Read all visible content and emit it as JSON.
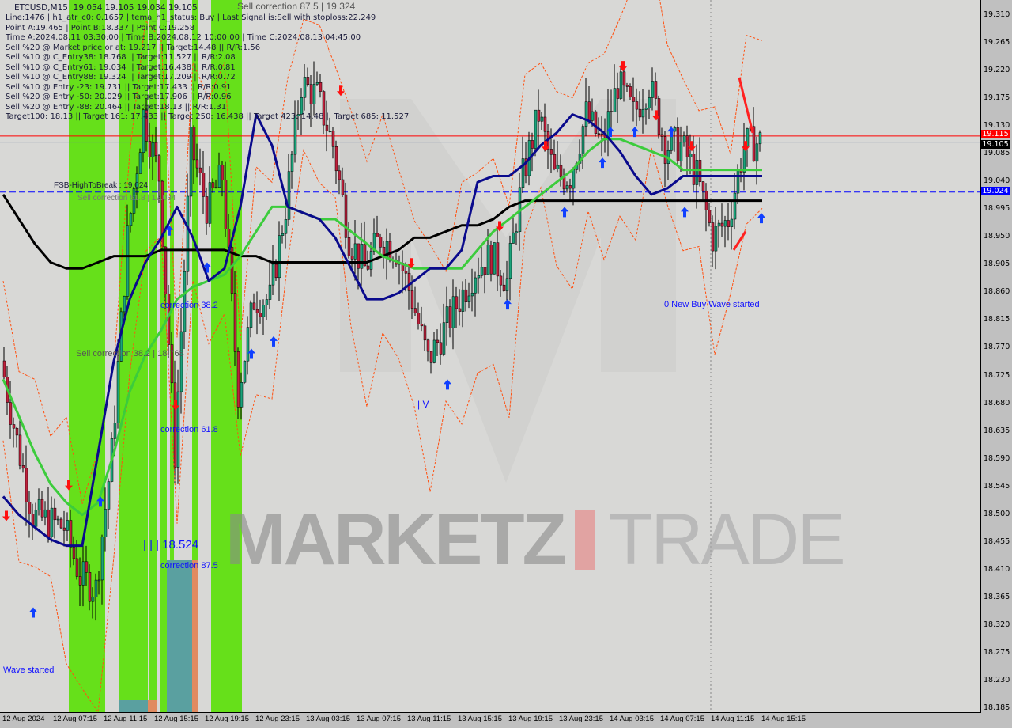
{
  "header": {
    "symbol": "ETCUSD,M15",
    "ohlc": "19.054 19.105 19.034 19.105",
    "lines": [
      "Line:1476 | h1_atr_c0: 0.1657 | tema_h1_status: Buy | Last Signal is:Sell with stoploss:22.249",
      "Point A:19.465 | Point B:18.337 | Point C:19.258",
      "Time A:2024.08.11 03:30:00 | Time B:2024.08.12 10:00:00 | Time C:2024.08.13 04:45:00",
      "Sell %20 @ Market price or at: 19.217 || Target:14.48 || R/R:1.56",
      "Sell %10 @ C_Entry38: 18.768 || Target:11.527 || R/R:2.08",
      "Sell %10 @ C_Entry61: 19.034 || Target:16.438 || R/R:0.81",
      "Sell %10 @ C_Entry88: 19.324 || Target:17.209 || R/R:0.72",
      "Sell %10 @ Entry -23: 19.731 || Target:17.433 || R/R:0.91",
      "Sell %20 @ Entry -50: 20.029 || Target:17.906 || R/R:0.96",
      "Sell %20 @ Entry -88: 20.464 || Target:18.13 || R/R:1.31",
      "Target100: 18.13 || Target 161: 17.433 || Target 250: 16.438 || Target 423: 14.48 || Target 685: 11.527"
    ]
  },
  "annotations": {
    "sell_corr_875": "Sell correction 87.5 | 19.324",
    "fsb": "FSB-HighToBreak : 19.024",
    "sell_corr_618": "Sell correction 61.8 | 19.034",
    "corr_382": "correction 38.2",
    "sell_corr_382": "Sell correction 38.2 | 18.768",
    "corr_618": "correction 61.8",
    "corr_875": "correction 87.5",
    "low_label": "| | | 18.524",
    "new_buy": "0 New Buy Wave started",
    "wave_started": "Wave started",
    "wave_v": "| V"
  },
  "watermark": {
    "left": "MARKETZ",
    "right": "TRADE",
    "accent": "#e8a0a0"
  },
  "price_tags": {
    "ask": "19.115",
    "bid": "19.105",
    "fsb": "19.024"
  },
  "colors": {
    "bull": "#1aa37a",
    "bear": "#c0203c",
    "zone": "#66e01a",
    "blue_ma": "#0a0a8c",
    "green_ma": "#3ccc3c",
    "black_ma": "#000000",
    "buy_arrow": "#1040ff",
    "sell_arrow": "#ff1010",
    "fsb_line": "#0000ff",
    "ask_line": "#ff0000"
  },
  "chart_data": {
    "type": "candlestick",
    "title": "ETCUSD,M15",
    "ylim": [
      18.185,
      19.31
    ],
    "y_ticks": [
      "19.310",
      "19.265",
      "19.220",
      "19.175",
      "19.130",
      "19.085",
      "19.040",
      "18.995",
      "18.950",
      "18.905",
      "18.860",
      "18.815",
      "18.770",
      "18.725",
      "18.680",
      "18.635",
      "18.590",
      "18.545",
      "18.500",
      "18.455",
      "18.410",
      "18.365",
      "18.320",
      "18.275",
      "18.230",
      "18.185"
    ],
    "x_ticks": [
      "12 Aug 2024",
      "12 Aug 07:15",
      "12 Aug 11:15",
      "12 Aug 15:15",
      "12 Aug 19:15",
      "12 Aug 23:15",
      "13 Aug 03:15",
      "13 Aug 07:15",
      "13 Aug 11:15",
      "13 Aug 15:15",
      "13 Aug 19:15",
      "13 Aug 23:15",
      "14 Aug 03:15",
      "14 Aug 07:15",
      "14 Aug 11:15",
      "14 Aug 15:15"
    ],
    "close_every_hour_approx": [
      18.75,
      18.62,
      18.5,
      18.49,
      18.48,
      18.4,
      18.38,
      18.6,
      18.95,
      19.15,
      19.05,
      18.6,
      19.1,
      19.0,
      19.05,
      18.7,
      18.85,
      18.85,
      19.0,
      19.2,
      19.18,
      19.1,
      18.95,
      18.9,
      18.95,
      18.93,
      18.85,
      18.75,
      18.8,
      18.85,
      18.9,
      18.92,
      18.88,
      19.05,
      19.15,
      19.05,
      19.05,
      19.15,
      19.1,
      19.2,
      19.15,
      19.2,
      19.1,
      19.1,
      19.05,
      18.95,
      18.98,
      19.1,
      19.105
    ],
    "series": [
      {
        "ma": "black",
        "values": [
          19.02,
          18.98,
          18.94,
          18.91,
          18.9,
          18.9,
          18.91,
          18.92,
          18.92,
          18.92,
          18.93,
          18.93,
          18.93,
          18.93,
          18.93,
          18.92,
          18.92,
          18.91,
          18.91,
          18.91,
          18.91,
          18.91,
          18.91,
          18.91,
          18.92,
          18.93,
          18.95,
          18.95,
          18.96,
          18.97,
          18.97,
          18.98,
          19.0,
          19.01,
          19.01,
          19.01,
          19.01,
          19.01,
          19.01,
          19.01,
          19.01,
          19.01,
          19.01,
          19.01,
          19.01,
          19.01,
          19.01,
          19.01,
          19.01
        ]
      },
      {
        "ma": "green",
        "values": [
          18.72,
          18.66,
          18.6,
          18.55,
          18.52,
          18.5,
          18.52,
          18.6,
          18.7,
          18.76,
          18.8,
          18.85,
          18.87,
          18.88,
          18.89,
          18.92,
          18.96,
          19.0,
          19.0,
          18.99,
          18.98,
          18.98,
          18.96,
          18.94,
          18.92,
          18.91,
          18.9,
          18.9,
          18.9,
          18.9,
          18.93,
          18.96,
          18.98,
          19.0,
          19.02,
          19.04,
          19.06,
          19.09,
          19.11,
          19.11,
          19.1,
          19.09,
          19.08,
          19.06,
          19.06,
          19.06,
          19.06,
          19.06,
          19.06
        ]
      },
      {
        "ma": "blue",
        "values": [
          18.53,
          18.5,
          18.48,
          18.46,
          18.45,
          18.45,
          18.6,
          18.75,
          18.85,
          18.91,
          18.95,
          19.0,
          18.95,
          18.88,
          18.9,
          19.0,
          19.15,
          19.1,
          19.0,
          18.99,
          18.98,
          18.95,
          18.9,
          18.85,
          18.85,
          18.86,
          18.88,
          18.9,
          18.9,
          18.93,
          19.04,
          19.05,
          19.05,
          19.07,
          19.1,
          19.12,
          19.15,
          19.14,
          19.12,
          19.09,
          19.05,
          19.02,
          19.03,
          19.05,
          19.05,
          19.05,
          19.05,
          19.05,
          19.05
        ]
      }
    ]
  }
}
